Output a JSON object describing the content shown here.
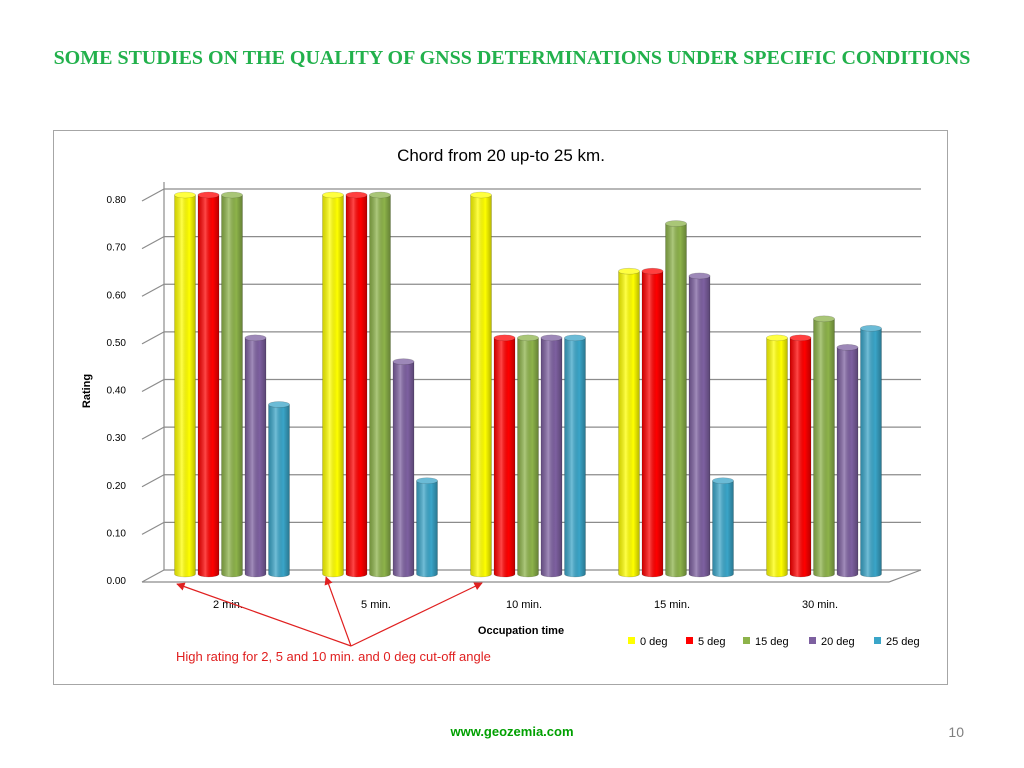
{
  "slide": {
    "title": "SOME STUDIES ON THE QUALITY OF GNSS DETERMINATIONS UNDER SPECIFIC CONDITIONS",
    "footer_url": "www.geozemia.com",
    "page_number": "10"
  },
  "annotation": {
    "text": "High rating for 2, 5 and 10 min. and 0 deg cut-off angle",
    "color": "#e02020"
  },
  "chart_data": {
    "type": "bar",
    "title": "Chord from 20 up-to 25 km.",
    "xlabel": "Occupation time",
    "ylabel": "Rating",
    "categories": [
      "2 min.",
      "5 min.",
      "10 min.",
      "15 min.",
      "30 min."
    ],
    "y_ticks": [
      "0.00",
      "0.10",
      "0.20",
      "0.30",
      "0.40",
      "0.50",
      "0.60",
      "0.70",
      "0.80"
    ],
    "ylim": [
      0,
      0.8
    ],
    "grid": true,
    "legend_position": "bottom-right",
    "series": [
      {
        "name": "0 deg",
        "color": "#ffff00",
        "values": [
          0.8,
          0.8,
          0.8,
          0.64,
          0.5
        ]
      },
      {
        "name": "5 deg",
        "color": "#ff0000",
        "values": [
          0.8,
          0.8,
          0.5,
          0.64,
          0.5
        ]
      },
      {
        "name": "15 deg",
        "color": "#8db34a",
        "values": [
          0.8,
          0.8,
          0.5,
          0.74,
          0.54
        ]
      },
      {
        "name": "20 deg",
        "color": "#7d60a0",
        "values": [
          0.5,
          0.45,
          0.5,
          0.63,
          0.48
        ]
      },
      {
        "name": "25 deg",
        "color": "#3aa5c8",
        "values": [
          0.36,
          0.2,
          0.5,
          0.2,
          0.52
        ]
      }
    ]
  }
}
